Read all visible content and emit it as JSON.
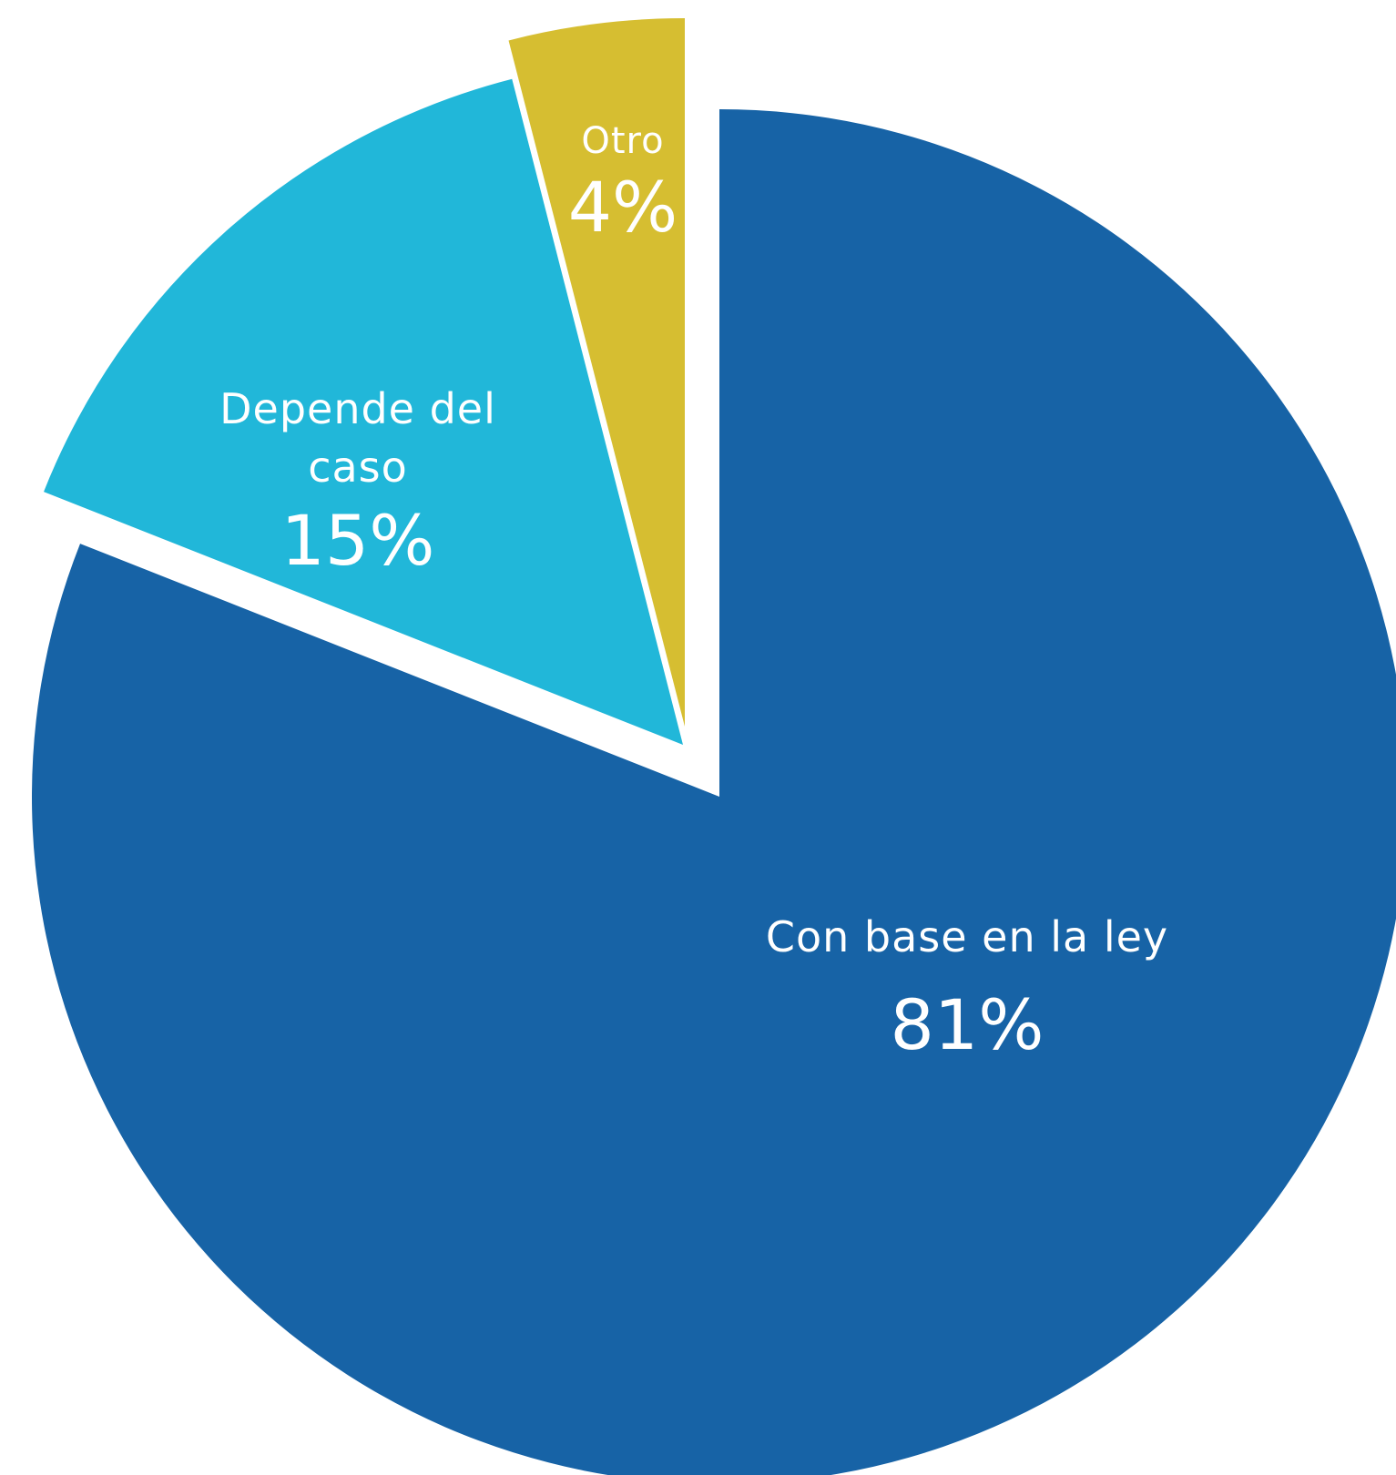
{
  "chart_data": {
    "type": "pie",
    "title": "",
    "slices": [
      {
        "label": "Con base en la ley",
        "value": 81,
        "value_label": "81%",
        "color": "#1763A6"
      },
      {
        "label": "Depende del caso",
        "value": 15,
        "value_label": "15%",
        "color": "#21B7D9"
      },
      {
        "label": "Otro",
        "value": 4,
        "value_label": "4%",
        "color": "#D6BE31"
      }
    ],
    "start": "12 o'clock",
    "direction": "clockwise",
    "exploded": [
      "Depende del caso",
      "Otro"
    ],
    "legend": "none"
  }
}
